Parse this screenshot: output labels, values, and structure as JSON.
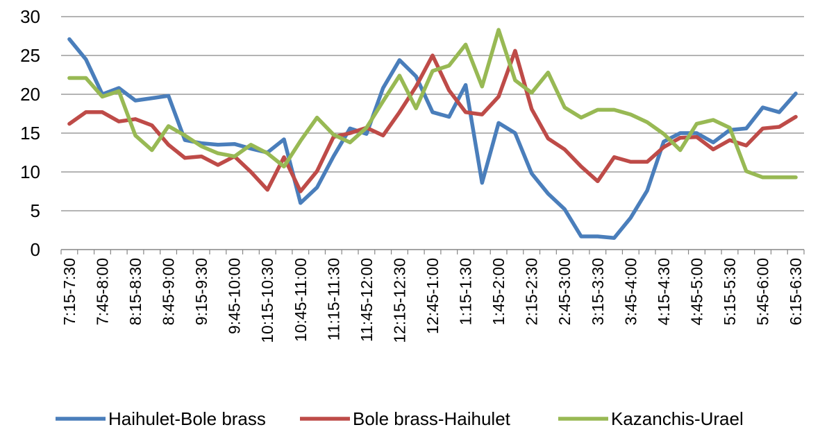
{
  "chart_data": {
    "type": "line",
    "x": [
      "7:15-7:30",
      "7:30-7:45",
      "7:45-8:00",
      "8:00-8:15",
      "8:15-8:30",
      "8:30-8:45",
      "8:45-9:00",
      "9:00-9:15",
      "9:15-9:30",
      "9:30-9:45",
      "9:45-10:00",
      "10:00-10:15",
      "10:15-10:30",
      "10:30-10:45",
      "10:45-11:00",
      "11:00-11:15",
      "11:15-11:30",
      "11:30-11:45",
      "11:45-12:00",
      "12:00-12:15",
      "12:15-12:30",
      "12:30-12:45",
      "12:45-1:00",
      "1:00-1:15",
      "1:15-1:30",
      "1:30-1:45",
      "1:45-2:00",
      "2:00-2:15",
      "2:15-2:30",
      "2:30-2:45",
      "2:45-3:00",
      "3:00-3:15",
      "3:15-3:30",
      "3:30-3:45",
      "3:45-4:00",
      "4:00-4:15",
      "4:15-4:30",
      "4:30-4:45",
      "4:45-5:00",
      "5:00-5:15",
      "5:15-5:30",
      "5:30-5:45",
      "5:45-6:00",
      "6:00-6:15",
      "6:15-6:30"
    ],
    "tick_labels": [
      "7:15-7:30",
      "7:45-8:00",
      "8:15-8:30",
      "8:45-9:00",
      "9:15-9:30",
      "9:45-10:00",
      "10:15-10:30",
      "10:45-11:00",
      "11:15-11:30",
      "11:45-12:00",
      "12:15-12:30",
      "12:45-1:00",
      "1:15-1:30",
      "1:45-2:00",
      "2:15-2:30",
      "2:45-3:00",
      "3:15-3:30",
      "3:45-4:00",
      "4:15-4:30",
      "4:45-5:00",
      "5:15-5:30",
      "5:45-6:00",
      "6:15-6:30"
    ],
    "series": [
      {
        "name": "Haihulet-Bole brass",
        "color": "#4a7ebb",
        "values": [
          27.1,
          24.5,
          20.0,
          20.8,
          19.2,
          19.5,
          19.8,
          14.1,
          13.7,
          13.5,
          13.6,
          13.0,
          12.5,
          14.2,
          6.0,
          8.0,
          12.0,
          15.6,
          14.9,
          20.8,
          24.4,
          22.3,
          17.7,
          17.1,
          21.2,
          8.6,
          16.3,
          15.0,
          9.8,
          7.2,
          5.2,
          1.7,
          1.7,
          1.5,
          4.1,
          7.6,
          13.9,
          15.0,
          15.0,
          13.8,
          15.4,
          15.6,
          18.3,
          17.7,
          20.1
        ]
      },
      {
        "name": "Bole brass-Haihulet",
        "color": "#be4b48",
        "values": [
          16.2,
          17.7,
          17.7,
          16.5,
          16.8,
          16.0,
          13.5,
          11.8,
          12.0,
          10.9,
          12.0,
          10.0,
          7.7,
          11.9,
          7.5,
          10.1,
          14.5,
          15.0,
          15.7,
          14.7,
          17.7,
          21.0,
          25.0,
          20.5,
          17.7,
          17.4,
          19.7,
          25.6,
          18.1,
          14.3,
          12.9,
          10.7,
          8.8,
          11.9,
          11.3,
          11.3,
          13.2,
          14.4,
          14.5,
          12.9,
          14.1,
          13.4,
          15.6,
          15.8,
          17.1
        ]
      },
      {
        "name": "Kazanchis-Urael",
        "color": "#98b954",
        "values": [
          22.1,
          22.1,
          19.7,
          20.4,
          14.7,
          12.8,
          15.9,
          14.7,
          13.3,
          12.4,
          12.0,
          13.5,
          12.4,
          10.7,
          14.0,
          17.0,
          14.8,
          13.8,
          15.7,
          19.1,
          22.4,
          18.2,
          23.0,
          23.7,
          26.4,
          21.0,
          28.3,
          21.8,
          20.2,
          22.8,
          18.3,
          17.0,
          18.0,
          18.0,
          17.4,
          16.4,
          14.9,
          12.8,
          16.2,
          16.7,
          15.7,
          10.1,
          9.3,
          9.3,
          9.3
        ]
      }
    ],
    "ylim": [
      0,
      30
    ],
    "yticks": [
      0,
      5,
      10,
      15,
      20,
      25,
      30
    ],
    "grid": true,
    "legend_position": "bottom",
    "xlabel": "",
    "ylabel": "",
    "title": ""
  }
}
